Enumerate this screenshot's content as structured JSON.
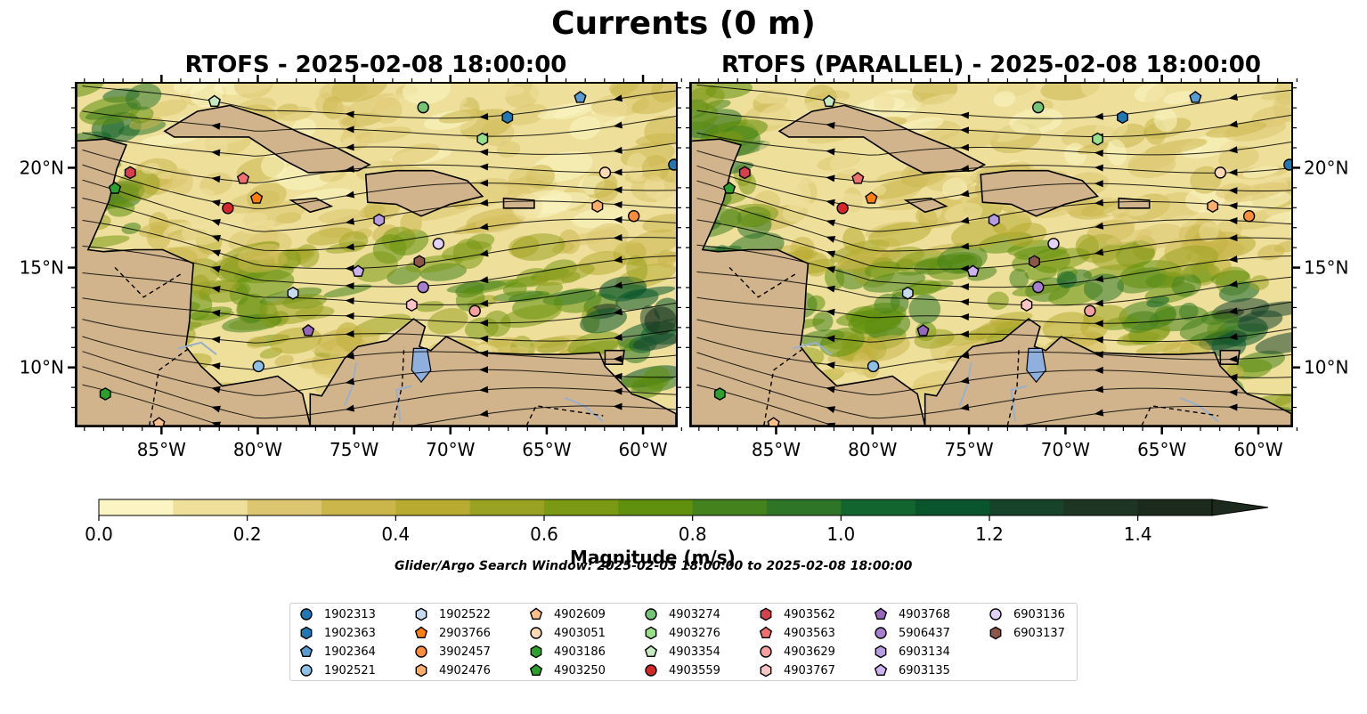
{
  "figure": {
    "title": "Currents (0 m)",
    "panels": [
      {
        "title": "RTOFS - 2025-02-08 18:00:00",
        "variant": "main"
      },
      {
        "title": "RTOFS (PARALLEL) - 2025-02-08 18:00:00",
        "variant": "parallel"
      }
    ],
    "lon_ticks": [
      "85°W",
      "80°W",
      "75°W",
      "70°W",
      "65°W",
      "60°W"
    ],
    "lat_ticks": [
      "20°N",
      "15°N",
      "10°N"
    ],
    "extent": {
      "lon_min": -89.5,
      "lon_max": -58.2,
      "lat_min": 7.0,
      "lat_max": 24.3
    },
    "colorbar": {
      "label": "Magnitude (m/s)",
      "ticks": [
        "0.0",
        "0.2",
        "0.4",
        "0.6",
        "0.8",
        "1.0",
        "1.2",
        "1.4"
      ],
      "range": [
        0,
        1.5
      ],
      "extend": "max",
      "colors": [
        "#fbf5c4",
        "#eedf9b",
        "#dcc770",
        "#cbb64c",
        "#b8ab32",
        "#9aa223",
        "#7c9915",
        "#60900d",
        "#43821c",
        "#2e7528",
        "#12652e",
        "#0a552c",
        "#17432b",
        "#1e3524",
        "#1b2a1c"
      ]
    },
    "search_window": "Glider/Argo Search Window: 2025-02-03 18:00:00 to 2025-02-08 18:00:00"
  },
  "legend": [
    {
      "id": "1902313",
      "color": "#1f77b4",
      "marker": "circle"
    },
    {
      "id": "1902363",
      "color": "#1f77b4",
      "marker": "hexagon"
    },
    {
      "id": "1902364",
      "color": "#5a9bd4",
      "marker": "pentagon"
    },
    {
      "id": "1902521",
      "color": "#8fc1e8",
      "marker": "circle"
    },
    {
      "id": "1902522",
      "color": "#c6dbef",
      "marker": "hexagon"
    },
    {
      "id": "2903766",
      "color": "#ff7f0e",
      "marker": "pentagon"
    },
    {
      "id": "3902457",
      "color": "#fd8d3c",
      "marker": "circle"
    },
    {
      "id": "4902476",
      "color": "#fdae6b",
      "marker": "hexagon"
    },
    {
      "id": "4902609",
      "color": "#fdc08b",
      "marker": "pentagon"
    },
    {
      "id": "4903051",
      "color": "#fdd9b5",
      "marker": "circle"
    },
    {
      "id": "4903186",
      "color": "#2ca02c",
      "marker": "hexagon"
    },
    {
      "id": "4903250",
      "color": "#2ca02c",
      "marker": "pentagon"
    },
    {
      "id": "4903274",
      "color": "#74c476",
      "marker": "circle"
    },
    {
      "id": "4903276",
      "color": "#98df8a",
      "marker": "hexagon"
    },
    {
      "id": "4903354",
      "color": "#c7e9c0",
      "marker": "pentagon"
    },
    {
      "id": "4903559",
      "color": "#d62728",
      "marker": "circle"
    },
    {
      "id": "4903562",
      "color": "#d6404e",
      "marker": "hexagon"
    },
    {
      "id": "4903563",
      "color": "#f06f6f",
      "marker": "pentagon"
    },
    {
      "id": "4903629",
      "color": "#f4a0a0",
      "marker": "circle"
    },
    {
      "id": "4903767",
      "color": "#fcc5c5",
      "marker": "hexagon"
    },
    {
      "id": "4903768",
      "color": "#9467bd",
      "marker": "pentagon"
    },
    {
      "id": "5906437",
      "color": "#a77fcf",
      "marker": "circle"
    },
    {
      "id": "6903134",
      "color": "#b79ce0",
      "marker": "hexagon"
    },
    {
      "id": "6903135",
      "color": "#cdb4f0",
      "marker": "pentagon"
    },
    {
      "id": "6903136",
      "color": "#e2d2fa",
      "marker": "circle"
    },
    {
      "id": "6903137",
      "color": "#8c564b",
      "marker": "hexagon"
    }
  ],
  "floats": [
    {
      "id": "1902313",
      "lon": -58.3,
      "lat": 20.2
    },
    {
      "id": "1902363",
      "lon": -67.0,
      "lat": 22.6
    },
    {
      "id": "1902364",
      "lon": -63.2,
      "lat": 23.6
    },
    {
      "id": "1902521",
      "lon": -80.0,
      "lat": 10.0
    },
    {
      "id": "1902522",
      "lon": -78.2,
      "lat": 13.7
    },
    {
      "id": "2903766",
      "lon": -80.1,
      "lat": 18.5
    },
    {
      "id": "3902457",
      "lon": -60.4,
      "lat": 17.6
    },
    {
      "id": "4902476",
      "lon": -62.3,
      "lat": 18.1
    },
    {
      "id": "4902609",
      "lon": -85.2,
      "lat": 7.1
    },
    {
      "id": "4903051",
      "lon": -61.9,
      "lat": 19.8
    },
    {
      "id": "4903186",
      "lon": -88.0,
      "lat": 8.6
    },
    {
      "id": "4903250",
      "lon": -87.5,
      "lat": 19.0
    },
    {
      "id": "4903274",
      "lon": -71.4,
      "lat": 23.1
    },
    {
      "id": "4903276",
      "lon": -68.3,
      "lat": 21.5
    },
    {
      "id": "4903354",
      "lon": -82.3,
      "lat": 23.4
    },
    {
      "id": "4903559",
      "lon": -81.6,
      "lat": 18.0
    },
    {
      "id": "4903562",
      "lon": -86.7,
      "lat": 19.8
    },
    {
      "id": "4903563",
      "lon": -80.8,
      "lat": 19.5
    },
    {
      "id": "4903629",
      "lon": -68.7,
      "lat": 12.8
    },
    {
      "id": "4903767",
      "lon": -72.0,
      "lat": 13.1
    },
    {
      "id": "4903768",
      "lon": -77.4,
      "lat": 11.8
    },
    {
      "id": "5906437",
      "lon": -71.4,
      "lat": 14.0
    },
    {
      "id": "6903134",
      "lon": -73.7,
      "lat": 17.4
    },
    {
      "id": "6903135",
      "lon": -74.8,
      "lat": 14.8
    },
    {
      "id": "6903136",
      "lon": -70.6,
      "lat": 16.2
    },
    {
      "id": "6903137",
      "lon": -71.6,
      "lat": 15.3
    }
  ]
}
